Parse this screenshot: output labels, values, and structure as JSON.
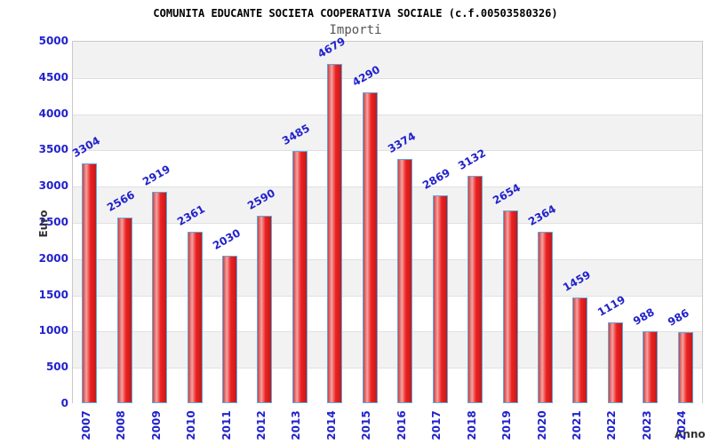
{
  "header": {
    "title": "COMUNITA EDUCANTE SOCIETA COOPERATIVA SOCIALE (c.f.00503580326)",
    "subtitle": "Importi"
  },
  "axes": {
    "y_label": "Euro",
    "x_label": "Anno",
    "y_ticks": [
      0,
      500,
      1000,
      1500,
      2000,
      2500,
      3000,
      3500,
      4000,
      4500,
      5000
    ]
  },
  "colors": {
    "axis_label_blue": "#2222cc",
    "bar_red": "#ee2121",
    "bar_border_blue": "#5ea9dd",
    "band_gray": "#f2f2f2",
    "title_black": "#000000",
    "subtitle_gray": "#555555",
    "axis_title_gray": "#333333"
  },
  "chart_data": {
    "type": "bar",
    "title": "COMUNITA EDUCANTE SOCIETA COOPERATIVA SOCIALE (c.f.00503580326)",
    "subtitle": "Importi",
    "xlabel": "Anno",
    "ylabel": "Euro",
    "categories": [
      "2007",
      "2008",
      "2009",
      "2010",
      "2011",
      "2012",
      "2013",
      "2014",
      "2015",
      "2016",
      "2017",
      "2018",
      "2019",
      "2020",
      "2021",
      "2022",
      "2023",
      "2024"
    ],
    "values": [
      3304,
      2566,
      2919,
      2361,
      2030,
      2590,
      3485,
      4679,
      4290,
      3374,
      2869,
      3132,
      2654,
      2364,
      1459,
      1119,
      988,
      986
    ],
    "ylim": [
      0,
      5000
    ],
    "ytick_step": 500,
    "grid": "horizontal bands every 500, alternating gray/white",
    "legend": "none",
    "bar_labels_rotation_deg": -30,
    "xtick_rotation_deg": -90
  }
}
